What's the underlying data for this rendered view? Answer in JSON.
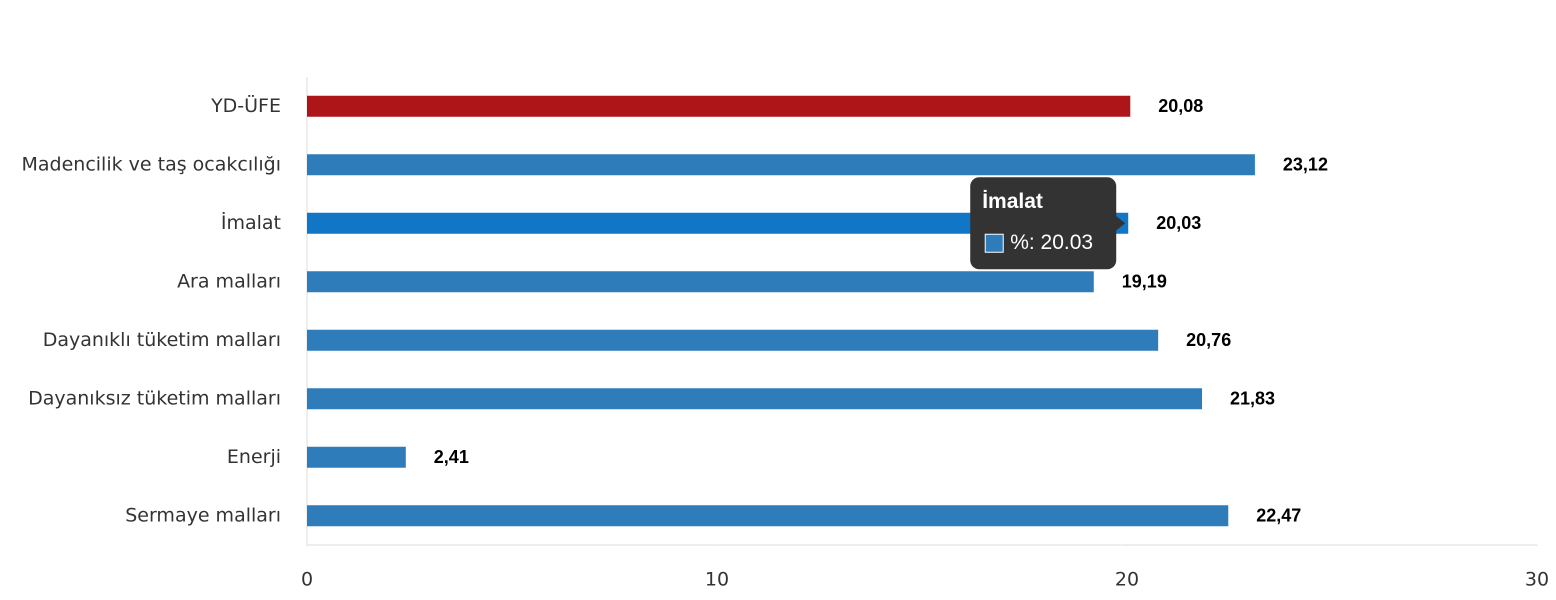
{
  "chart_data": {
    "type": "bar",
    "orientation": "horizontal",
    "categories": [
      "YD-ÜFE",
      "Madencilik ve taş ocakcılığı",
      "İmalat",
      "Ara malları",
      "Dayanıklı tüketim malları",
      "Dayanıksız tüketim malları",
      "Enerji",
      "Sermaye malları"
    ],
    "values": [
      20.08,
      23.12,
      20.03,
      19.19,
      20.76,
      21.83,
      2.41,
      22.47
    ],
    "value_labels": [
      "20,08",
      "23,12",
      "20,03",
      "19,19",
      "20,76",
      "21,83",
      "2,41",
      "22,47"
    ],
    "colors": [
      "#ad1519",
      "#2e7dba",
      "#1176c6",
      "#2e7dba",
      "#2e7dba",
      "#2e7dba",
      "#2e7dba",
      "#2e7dba"
    ],
    "xlim": [
      0,
      30
    ],
    "xticks": [
      0,
      10,
      20,
      30
    ],
    "grid": false,
    "tooltip": {
      "title": "İmalat",
      "text": "%: 20.03",
      "color": "#2e7dba"
    }
  }
}
